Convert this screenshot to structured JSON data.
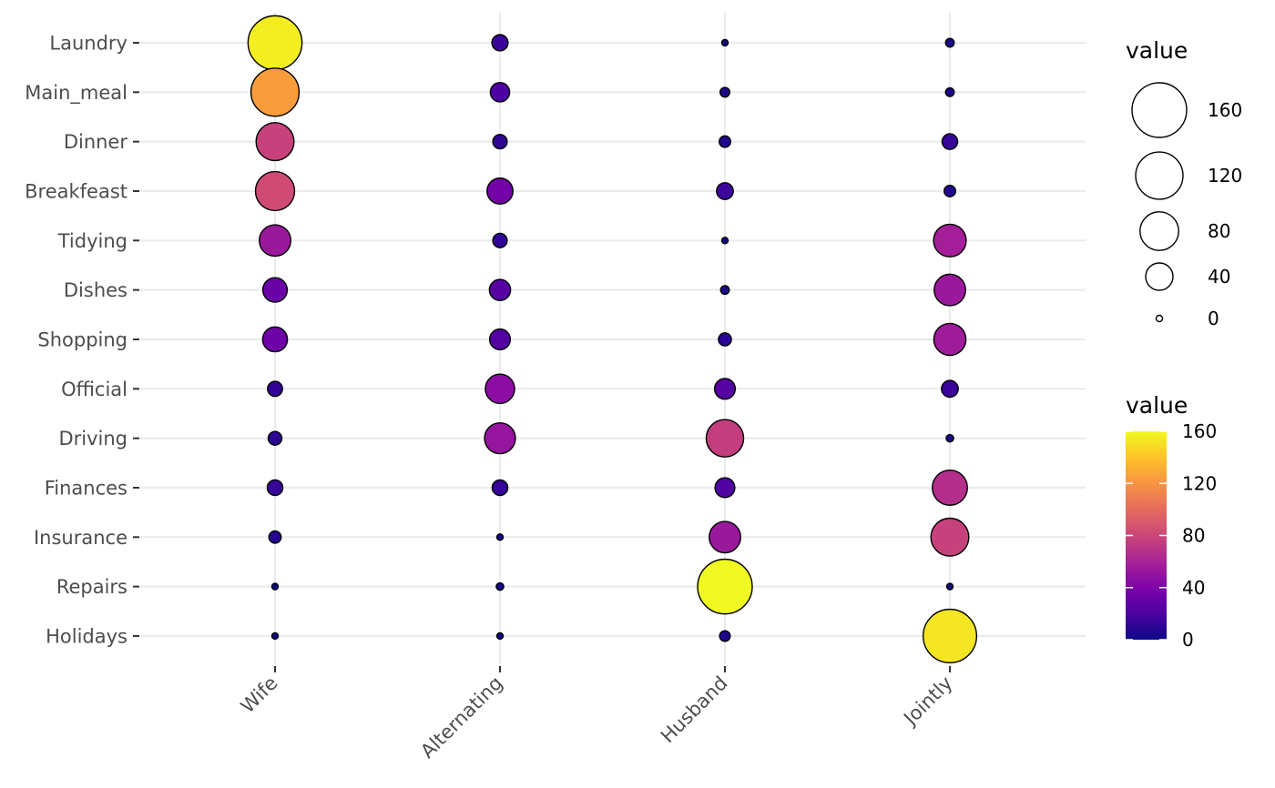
{
  "chart_data": {
    "type": "scatter",
    "subtype": "balloon",
    "title": "",
    "xlabel": "",
    "ylabel": "",
    "x_categories": [
      "Wife",
      "Alternating",
      "Husband",
      "Jointly"
    ],
    "y_categories": [
      "Laundry",
      "Main_meal",
      "Dinner",
      "Breakfeast",
      "Tidying",
      "Dishes",
      "Shopping",
      "Official",
      "Driving",
      "Finances",
      "Insurance",
      "Repairs",
      "Holidays"
    ],
    "values": {
      "Laundry": [
        156,
        14,
        2,
        4
      ],
      "Main_meal": [
        124,
        20,
        5,
        4
      ],
      "Dinner": [
        77,
        11,
        7,
        13
      ],
      "Breakfeast": [
        82,
        36,
        15,
        7
      ],
      "Tidying": [
        53,
        11,
        1,
        57
      ],
      "Dishes": [
        32,
        24,
        4,
        53
      ],
      "Shopping": [
        33,
        23,
        9,
        55
      ],
      "Official": [
        12,
        46,
        23,
        15
      ],
      "Driving": [
        10,
        51,
        75,
        3
      ],
      "Finances": [
        13,
        13,
        21,
        66
      ],
      "Insurance": [
        8,
        1,
        53,
        77
      ],
      "Repairs": [
        0,
        3,
        160,
        2
      ],
      "Holidays": [
        0,
        1,
        6,
        153
      ]
    },
    "size_legend": {
      "title": "value",
      "breaks": [
        "160",
        "120",
        "80",
        "40",
        "0"
      ]
    },
    "color_legend": {
      "title": "value",
      "breaks": [
        "160",
        "120",
        "80",
        "40",
        "0"
      ],
      "range": [
        0,
        160
      ],
      "palette": "plasma"
    },
    "grid": true
  }
}
